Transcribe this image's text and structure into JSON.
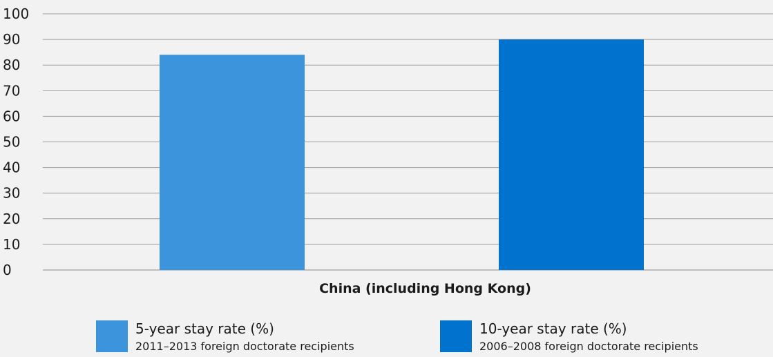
{
  "chart_data": {
    "type": "bar",
    "categories": [
      "China (including Hong Kong)"
    ],
    "series": [
      {
        "name": "5-year stay rate (%)",
        "subtitle": "2011–2013 foreign doctorate recipients",
        "values": [
          84
        ],
        "color": "#3b94dc"
      },
      {
        "name": "10-year stay rate (%)",
        "subtitle": "2006–2008 foreign doctorate recipients",
        "values": [
          90
        ],
        "color": "#0173cf"
      }
    ],
    "yticks": [
      "0",
      "10",
      "20",
      "30",
      "40",
      "50",
      "60",
      "70",
      "80",
      "90",
      "100"
    ],
    "ylim": [
      0,
      100
    ],
    "grid": true,
    "legend_position": "bottom",
    "title": "",
    "xlabel": "",
    "ylabel": ""
  }
}
